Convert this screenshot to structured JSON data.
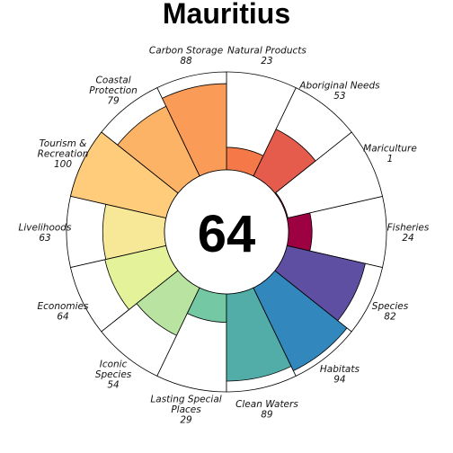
{
  "title": "Mauritius",
  "center_score": "64",
  "chart_data": {
    "type": "flower",
    "max_value": 100,
    "petals": [
      {
        "name": "Fisheries",
        "value": 24,
        "color": "#9E0142"
      },
      {
        "name": "Mariculture",
        "value": 1,
        "color": "#C2294A"
      },
      {
        "name": "Aboriginal Needs",
        "value": 53,
        "color": "#E55B4C"
      },
      {
        "name": "Natural Products",
        "value": 23,
        "color": "#F57848"
      },
      {
        "name": "Carbon Storage",
        "value": 88,
        "color": "#FA9B58"
      },
      {
        "name": "Coastal\nProtection",
        "value": 79,
        "color": "#FDB366"
      },
      {
        "name": "Tourism &\nRecreation",
        "value": 100,
        "color": "#FECC7B"
      },
      {
        "name": "Livelihoods",
        "value": 63,
        "color": "#F7E897"
      },
      {
        "name": "Economies",
        "value": 64,
        "color": "#E4F29A"
      },
      {
        "name": "Iconic\nSpecies",
        "value": 54,
        "color": "#B9E3A0"
      },
      {
        "name": "Lasting Special\nPlaces",
        "value": 29,
        "color": "#74C8A4"
      },
      {
        "name": "Clean Waters",
        "value": 89,
        "color": "#52ADA8"
      },
      {
        "name": "Habitats",
        "value": 94,
        "color": "#3288BD"
      },
      {
        "name": "Species",
        "value": 82,
        "color": "#5E4FA2"
      }
    ]
  }
}
